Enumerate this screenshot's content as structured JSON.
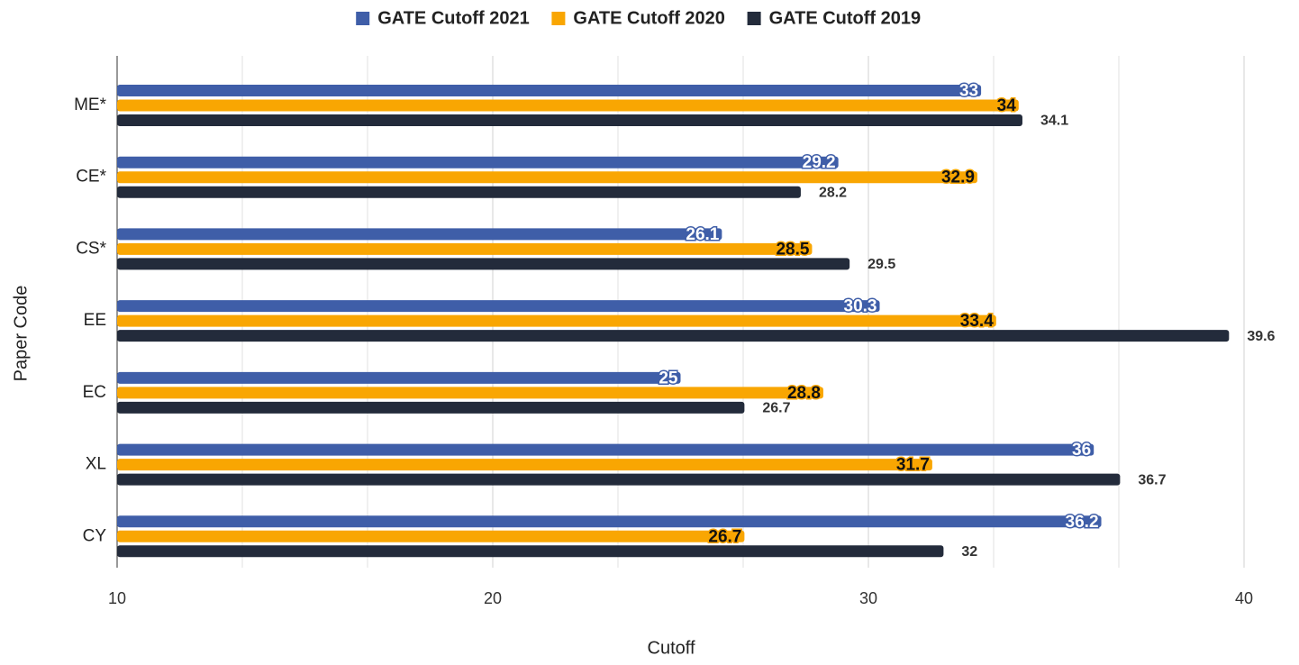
{
  "chart_data": {
    "type": "barh",
    "x_label": "Cutoff",
    "y_label": "Paper Code",
    "categories": [
      "ME*",
      "CE*",
      "CS*",
      "EE",
      "EC",
      "XL",
      "CY"
    ],
    "series": [
      {
        "name": "GATE Cutoff 2021",
        "color": "#3f5ea8",
        "values": [
          33,
          29.2,
          26.1,
          30.3,
          25,
          36,
          36.2
        ]
      },
      {
        "name": "GATE Cutoff 2020",
        "color": "#f9a602",
        "values": [
          34,
          32.9,
          28.5,
          33.4,
          28.8,
          31.7,
          26.7
        ]
      },
      {
        "name": "GATE Cutoff 2019",
        "color": "#232b3b",
        "values": [
          34.1,
          28.2,
          29.5,
          39.6,
          26.7,
          36.7,
          32
        ]
      }
    ],
    "xlim": [
      10,
      40
    ],
    "xticks": [
      10,
      20,
      30,
      40
    ],
    "minor_xticks": [
      13.333,
      16.667,
      23.333,
      26.667,
      33.333,
      36.667
    ],
    "grid": true,
    "legend": "top"
  }
}
